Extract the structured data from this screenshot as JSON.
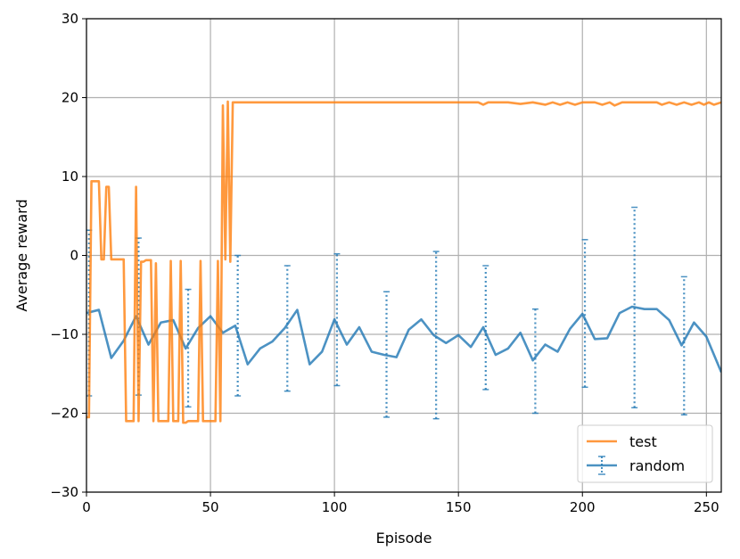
{
  "chart_data": {
    "type": "line",
    "xlabel": "Episode",
    "ylabel": "Average reward",
    "xlim": [
      0,
      256
    ],
    "ylim": [
      -30,
      30
    ],
    "xticks": [
      0,
      50,
      100,
      150,
      200,
      250
    ],
    "yticks": [
      -30,
      -20,
      -10,
      0,
      10,
      20,
      30
    ],
    "x_tick_labels": [
      "0",
      "50",
      "100",
      "150",
      "200",
      "250"
    ],
    "y_tick_labels": [
      "−30",
      "−20",
      "−10",
      "0",
      "10",
      "20",
      "30"
    ],
    "grid": true,
    "legend_position": "bottom-right",
    "series": [
      {
        "name": "test",
        "color": "#ff7f0e",
        "points": [
          [
            0,
            -20.5
          ],
          [
            1,
            -20.5
          ],
          [
            2,
            9.4
          ],
          [
            3,
            9.4
          ],
          [
            4,
            9.4
          ],
          [
            5,
            9.4
          ],
          [
            6,
            -0.5
          ],
          [
            7,
            -0.5
          ],
          [
            8,
            8.7
          ],
          [
            9,
            8.7
          ],
          [
            10,
            -0.5
          ],
          [
            11,
            -0.5
          ],
          [
            12,
            -0.5
          ],
          [
            13,
            -0.5
          ],
          [
            14,
            -0.5
          ],
          [
            15,
            -0.5
          ],
          [
            16,
            -21
          ],
          [
            17,
            -21
          ],
          [
            18,
            -21
          ],
          [
            19,
            -21
          ],
          [
            20,
            8.7
          ],
          [
            21,
            -21
          ],
          [
            22,
            -0.8
          ],
          [
            23,
            -0.8
          ],
          [
            24,
            -0.6
          ],
          [
            25,
            -0.6
          ],
          [
            26,
            -0.6
          ],
          [
            27,
            -21
          ],
          [
            28,
            -1
          ],
          [
            29,
            -21
          ],
          [
            30,
            -21
          ],
          [
            31,
            -21
          ],
          [
            32,
            -21
          ],
          [
            33,
            -21
          ],
          [
            34,
            -0.7
          ],
          [
            35,
            -21
          ],
          [
            36,
            -21
          ],
          [
            37,
            -21
          ],
          [
            38,
            -0.7
          ],
          [
            39,
            -21.2
          ],
          [
            40,
            -21.2
          ],
          [
            41,
            -21
          ],
          [
            42,
            -21
          ],
          [
            43,
            -21
          ],
          [
            44,
            -21
          ],
          [
            45,
            -21
          ],
          [
            46,
            -0.7
          ],
          [
            47,
            -21
          ],
          [
            48,
            -21
          ],
          [
            49,
            -21
          ],
          [
            50,
            -21
          ],
          [
            51,
            -21
          ],
          [
            52,
            -21
          ],
          [
            53,
            -0.7
          ],
          [
            54,
            -21
          ],
          [
            55,
            19
          ],
          [
            56,
            -0.5
          ],
          [
            57,
            19.5
          ],
          [
            58,
            -0.8
          ],
          [
            59,
            19.4
          ],
          [
            70,
            19.4
          ],
          [
            80,
            19.4
          ],
          [
            90,
            19.4
          ],
          [
            100,
            19.4
          ],
          [
            110,
            19.4
          ],
          [
            120,
            19.4
          ],
          [
            130,
            19.4
          ],
          [
            140,
            19.4
          ],
          [
            150,
            19.4
          ],
          [
            158,
            19.4
          ],
          [
            160,
            19.1
          ],
          [
            162,
            19.4
          ],
          [
            170,
            19.4
          ],
          [
            175,
            19.2
          ],
          [
            180,
            19.4
          ],
          [
            185,
            19.1
          ],
          [
            188,
            19.4
          ],
          [
            191,
            19.1
          ],
          [
            194,
            19.4
          ],
          [
            197,
            19.1
          ],
          [
            200,
            19.4
          ],
          [
            205,
            19.4
          ],
          [
            208,
            19.1
          ],
          [
            211,
            19.4
          ],
          [
            213,
            19.0
          ],
          [
            216,
            19.4
          ],
          [
            230,
            19.4
          ],
          [
            232,
            19.1
          ],
          [
            235,
            19.4
          ],
          [
            238,
            19.1
          ],
          [
            241,
            19.4
          ],
          [
            244,
            19.1
          ],
          [
            247,
            19.4
          ],
          [
            249,
            19.1
          ],
          [
            251,
            19.4
          ],
          [
            253,
            19.1
          ],
          [
            256,
            19.4
          ]
        ]
      },
      {
        "name": "random",
        "color": "#1f77b4",
        "points": [
          [
            0,
            -7.3
          ],
          [
            5,
            -6.9
          ],
          [
            10,
            -13
          ],
          [
            15,
            -10.8
          ],
          [
            20,
            -7.7
          ],
          [
            25,
            -11.3
          ],
          [
            30,
            -8.5
          ],
          [
            35,
            -8.2
          ],
          [
            40,
            -11.8
          ],
          [
            45,
            -9.2
          ],
          [
            50,
            -7.7
          ],
          [
            55,
            -9.8
          ],
          [
            60,
            -8.9
          ],
          [
            65,
            -13.8
          ],
          [
            70,
            -11.8
          ],
          [
            75,
            -10.9
          ],
          [
            80,
            -9.2
          ],
          [
            85,
            -6.9
          ],
          [
            90,
            -13.8
          ],
          [
            95,
            -12.2
          ],
          [
            100,
            -8.1
          ],
          [
            105,
            -11.3
          ],
          [
            110,
            -9.1
          ],
          [
            115,
            -12.2
          ],
          [
            120,
            -12.6
          ],
          [
            125,
            -12.9
          ],
          [
            130,
            -9.4
          ],
          [
            135,
            -8.1
          ],
          [
            140,
            -10.1
          ],
          [
            145,
            -11.1
          ],
          [
            150,
            -10.1
          ],
          [
            155,
            -11.6
          ],
          [
            160,
            -9.1
          ],
          [
            165,
            -12.6
          ],
          [
            170,
            -11.8
          ],
          [
            175,
            -9.8
          ],
          [
            180,
            -13.3
          ],
          [
            185,
            -11.3
          ],
          [
            190,
            -12.2
          ],
          [
            195,
            -9.3
          ],
          [
            200,
            -7.4
          ],
          [
            205,
            -10.6
          ],
          [
            210,
            -10.5
          ],
          [
            215,
            -7.3
          ],
          [
            220,
            -6.5
          ],
          [
            225,
            -6.8
          ],
          [
            230,
            -6.8
          ],
          [
            235,
            -8.2
          ],
          [
            240,
            -11.4
          ],
          [
            245,
            -8.5
          ],
          [
            250,
            -10.3
          ],
          [
            256,
            -14.8
          ]
        ],
        "error_bars": [
          {
            "x": 1,
            "low": -17.8,
            "high": 3.2
          },
          {
            "x": 21,
            "low": -17.7,
            "high": 2.2
          },
          {
            "x": 41,
            "low": -19.2,
            "high": -4.3
          },
          {
            "x": 61,
            "low": -17.8,
            "high": 0
          },
          {
            "x": 81,
            "low": -17.2,
            "high": -1.3
          },
          {
            "x": 101,
            "low": -16.5,
            "high": 0.2
          },
          {
            "x": 121,
            "low": -20.5,
            "high": -4.6
          },
          {
            "x": 141,
            "low": -20.7,
            "high": 0.5
          },
          {
            "x": 161,
            "low": -17,
            "high": -1.3
          },
          {
            "x": 181,
            "low": -20,
            "high": -6.8
          },
          {
            "x": 201,
            "low": -16.7,
            "high": 2
          },
          {
            "x": 221,
            "low": -19.3,
            "high": 6.1
          },
          {
            "x": 241,
            "low": -20.2,
            "high": -2.7
          }
        ]
      }
    ]
  }
}
